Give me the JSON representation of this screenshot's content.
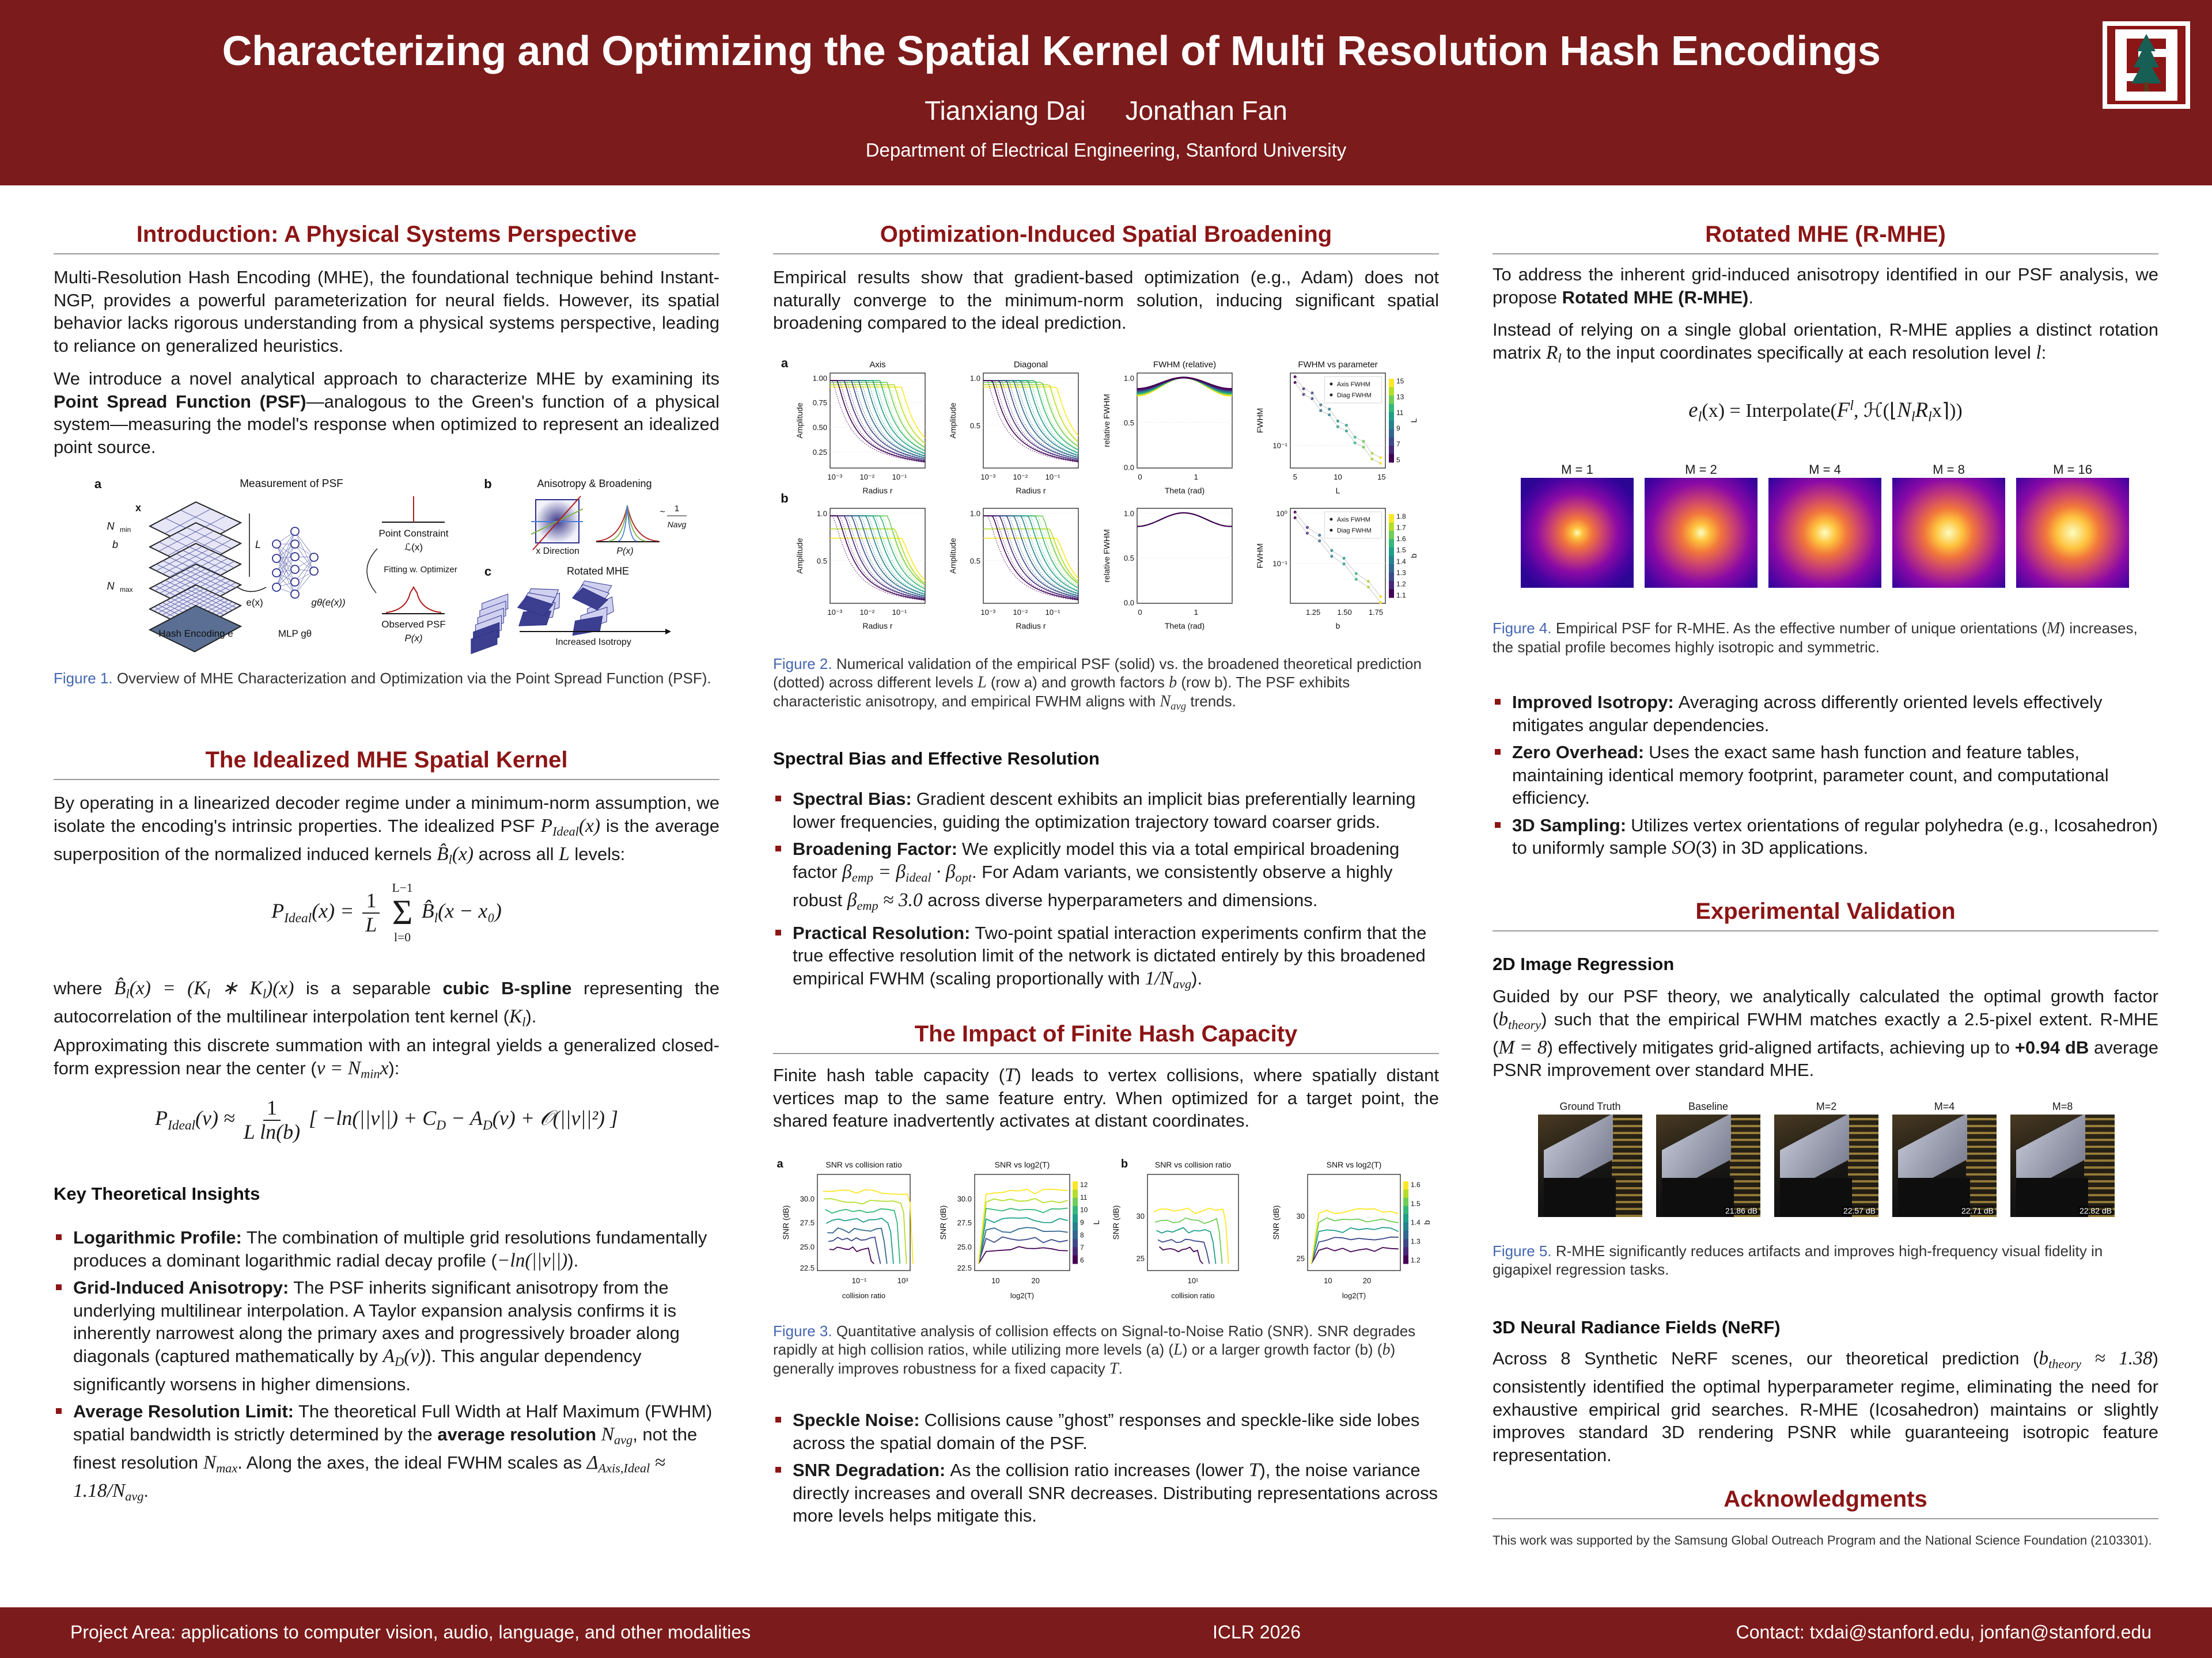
{
  "header": {
    "title": "Characterizing and Optimizing the Spatial Kernel of Multi Resolution Hash Encodings",
    "authors": [
      "Tianxiang Dai",
      "Jonathan Fan"
    ],
    "affiliation": "Department of Electrical Engineering, Stanford University",
    "logo": "Stanford tree logo",
    "brand_color": "#7c1b1b"
  },
  "footer": {
    "left": "Project Area: applications to computer vision, audio, language, and other modalities",
    "center": "ICLR 2026",
    "right": "Contact: txdai@stanford.edu, jonfan@stanford.edu"
  },
  "left": {
    "intro_title": "Introduction: A Physical Systems Perspective",
    "intro_p1": [
      {
        "t": "Multi-Resolution Hash Encoding (MHE), the foundational technique behind Instant-NGP, provides a powerful parameterization for neural fields. However, its spatial behavior lacks rigorous understanding from a physical systems perspective, leading to reliance on generalized heuristics."
      }
    ],
    "intro_p2": [
      {
        "t": "We introduce a novel analytical approach to characterize MHE by examining its "
      },
      {
        "t": "Point Spread Function (PSF)",
        "s": "b"
      },
      {
        "t": "—analogous to the Green's function of a physical system—measuring the model's response when optimized to represent an idealized point source."
      }
    ],
    "fig1_caption": [
      {
        "t": "Figure 1.",
        "s": "c"
      },
      {
        "t": " Overview of MHE Characterization and Optimization via the Point Spread Function (PSF)."
      }
    ],
    "ideal_title": "The Idealized MHE Spatial Kernel",
    "ideal_p1": [
      {
        "t": "By operating in a linearized decoder regime under a minimum-norm assumption, we isolate the encoding's intrinsic properties. The idealized PSF "
      },
      {
        "t": "P",
        "s": "m"
      },
      {
        "t": "Ideal",
        "s": "sub"
      },
      {
        "t": "(x)",
        "s": "m"
      },
      {
        "t": " is the average superposition of the normalized induced kernels "
      },
      {
        "t": "B̂",
        "s": "m"
      },
      {
        "t": "l",
        "s": "sub"
      },
      {
        "t": "(x)",
        "s": "m"
      },
      {
        "t": " across all "
      },
      {
        "t": "L",
        "s": "m"
      },
      {
        "t": " levels:"
      }
    ],
    "eq1": {
      "lhs": "P",
      "lhs_sub": "Ideal",
      "lhs_arg": "(x) =",
      "num": "1",
      "den": "L",
      "sum_top": "L−1",
      "sum": "Σ",
      "sum_bot": "l=0",
      "term": "B̂",
      "term_sub": "l",
      "term_arg": "(x − x₀)"
    },
    "ideal_p2": [
      {
        "t": "where "
      },
      {
        "t": "B̂",
        "s": "m"
      },
      {
        "t": "l",
        "s": "sub"
      },
      {
        "t": "(x) = (K",
        "s": "m"
      },
      {
        "t": "l",
        "s": "sub"
      },
      {
        "t": " ∗ K",
        "s": "m"
      },
      {
        "t": "l",
        "s": "sub"
      },
      {
        "t": ")(x)",
        "s": "m"
      },
      {
        "t": " is a separable "
      },
      {
        "t": "cubic B-spline",
        "s": "b"
      },
      {
        "t": " representing the autocorrelation of the multilinear interpolation tent kernel ("
      },
      {
        "t": "K",
        "s": "m"
      },
      {
        "t": "l",
        "s": "sub"
      },
      {
        "t": ")."
      }
    ],
    "ideal_p3": [
      {
        "t": "Approximating this discrete summation with an integral yields a generalized closed-form expression near the center ("
      },
      {
        "t": "v = N",
        "s": "m"
      },
      {
        "t": "min",
        "s": "sub"
      },
      {
        "t": "x",
        "s": "m"
      },
      {
        "t": "):"
      }
    ],
    "eq2": {
      "lhs": "P",
      "lhs_sub": "Ideal",
      "lhs_arg": "(v) ≈",
      "num": "1",
      "den": "L ln(b)",
      "body": "[ −ln(||v||) + C",
      "c_sub": "D",
      "mid": " − A",
      "a_sub": "D",
      "tail": "(v) + 𝒪(||v||²) ]"
    },
    "insights_title": "Key Theoretical Insights",
    "insights": [
      {
        "term": "Logarithmic Profile:",
        "segs": [
          {
            "t": "The combination of multiple grid resolutions fundamentally produces a dominant logarithmic radial decay profile ("
          },
          {
            "t": "−ln(||v||)",
            "s": "m"
          },
          {
            "t": ")."
          }
        ]
      },
      {
        "term": "Grid-Induced Anisotropy:",
        "segs": [
          {
            "t": "The PSF inherits significant anisotropy from the underlying multilinear interpolation. A Taylor expansion analysis confirms it is inherently narrowest along the primary axes and progressively broader along diagonals (captured mathematically by "
          },
          {
            "t": "A",
            "s": "m"
          },
          {
            "t": "D",
            "s": "sub"
          },
          {
            "t": "(v)",
            "s": "m"
          },
          {
            "t": "). This angular dependency significantly worsens in higher dimensions."
          }
        ]
      },
      {
        "term": "Average Resolution Limit:",
        "segs": [
          {
            "t": "The theoretical Full Width at Half Maximum (FWHM) spatial bandwidth is strictly determined by the "
          },
          {
            "t": "average resolution",
            "s": "b"
          },
          {
            "t": " "
          },
          {
            "t": "N",
            "s": "m"
          },
          {
            "t": "avg",
            "s": "sub"
          },
          {
            "t": ", not the finest resolution "
          },
          {
            "t": "N",
            "s": "m"
          },
          {
            "t": "max",
            "s": "sub"
          },
          {
            "t": ". Along the axes, the ideal FWHM scales as "
          },
          {
            "t": "Δ",
            "s": "m"
          },
          {
            "t": "Axis,Ideal",
            "s": "sub"
          },
          {
            "t": " ≈ 1.18/N",
            "s": "m"
          },
          {
            "t": "avg",
            "s": "sub"
          },
          {
            "t": "."
          }
        ]
      }
    ]
  },
  "mid": {
    "opt_title": "Optimization-Induced Spatial Broadening",
    "opt_p1": [
      {
        "t": "Empirical results show that gradient-based optimization (e.g., Adam) does not naturally converge to the minimum-norm solution, inducing significant spatial broadening compared to the ideal prediction."
      }
    ],
    "fig2_caption": [
      {
        "t": "Figure 2.",
        "s": "c"
      },
      {
        "t": " Numerical validation of the empirical PSF (solid) vs. the broadened theoretical prediction (dotted) across different levels "
      },
      {
        "t": "L",
        "s": "m"
      },
      {
        "t": " (row a) and growth factors "
      },
      {
        "t": "b",
        "s": "m"
      },
      {
        "t": " (row b). The PSF exhibits characteristic anisotropy, and empirical FWHM aligns with "
      },
      {
        "t": "N",
        "s": "m"
      },
      {
        "t": "avg",
        "s": "sub"
      },
      {
        "t": " trends."
      }
    ],
    "spectral_title": "Spectral Bias and Effective Resolution",
    "spectral": [
      {
        "term": "Spectral Bias:",
        "segs": [
          {
            "t": "Gradient descent exhibits an implicit bias preferentially learning lower frequencies, guiding the optimization trajectory toward coarser grids."
          }
        ]
      },
      {
        "term": "Broadening Factor:",
        "segs": [
          {
            "t": "We explicitly model this via a total empirical broadening factor "
          },
          {
            "t": "β",
            "s": "m"
          },
          {
            "t": "emp",
            "s": "sub"
          },
          {
            "t": " = β",
            "s": "m"
          },
          {
            "t": "ideal",
            "s": "sub"
          },
          {
            "t": " · β",
            "s": "m"
          },
          {
            "t": "opt",
            "s": "sub"
          },
          {
            "t": ". For Adam variants, we consistently observe a highly robust "
          },
          {
            "t": "β",
            "s": "m"
          },
          {
            "t": "emp",
            "s": "sub"
          },
          {
            "t": " ≈ 3.0",
            "s": "m"
          },
          {
            "t": " across diverse hyperparameters and dimensions."
          }
        ]
      },
      {
        "term": "Practical Resolution:",
        "segs": [
          {
            "t": "Two-point spatial interaction experiments confirm that the true effective resolution limit of the network is dictated entirely by this broadened empirical FWHM (scaling proportionally with "
          },
          {
            "t": "1/N",
            "s": "m"
          },
          {
            "t": "avg",
            "s": "sub"
          },
          {
            "t": ")."
          }
        ]
      }
    ],
    "hash_title": "The Impact of Finite Hash Capacity",
    "hash_p1": [
      {
        "t": "Finite hash table capacity ("
      },
      {
        "t": "T",
        "s": "m"
      },
      {
        "t": ") leads to vertex collisions, where spatially distant vertices map to the same feature entry. When optimized for a target point, the shared feature inadvertently activates at distant coordinates."
      }
    ],
    "fig3_caption": [
      {
        "t": "Figure 3.",
        "s": "c"
      },
      {
        "t": " Quantitative analysis of collision effects on Signal-to-Noise Ratio (SNR). SNR degrades rapidly at high collision ratios, while utilizing more levels (a) ("
      },
      {
        "t": "L",
        "s": "m"
      },
      {
        "t": ") or a larger growth factor (b) ("
      },
      {
        "t": "b",
        "s": "m"
      },
      {
        "t": ") generally improves robustness for a fixed capacity "
      },
      {
        "t": "T",
        "s": "m"
      },
      {
        "t": "."
      }
    ],
    "hash_bullets": [
      {
        "term": "Speckle Noise:",
        "segs": [
          {
            "t": "Collisions cause ”ghost” responses and speckle-like side lobes across the spatial domain of the PSF."
          }
        ]
      },
      {
        "term": "SNR Degradation:",
        "segs": [
          {
            "t": "As the collision ratio increases (lower "
          },
          {
            "t": "T",
            "s": "m"
          },
          {
            "t": "), the noise variance directly increases and overall SNR decreases. Distributing representations across more levels helps mitigate this."
          }
        ]
      }
    ]
  },
  "right": {
    "rmhe_title": "Rotated MHE (R-MHE)",
    "rmhe_p1": [
      {
        "t": "To address the inherent grid-induced anisotropy identified in our PSF analysis, we propose "
      },
      {
        "t": "Rotated MHE (R-MHE)",
        "s": "b"
      },
      {
        "t": "."
      }
    ],
    "rmhe_p2": [
      {
        "t": "Instead of relying on a single global orientation, R-MHE applies a distinct rotation matrix "
      },
      {
        "t": "R",
        "s": "m"
      },
      {
        "t": "l",
        "s": "sub"
      },
      {
        "t": " to the input coordinates specifically at each resolution level "
      },
      {
        "t": "l",
        "s": "m"
      },
      {
        "t": ":"
      }
    ],
    "eq3": [
      {
        "t": "e",
        "s": "m"
      },
      {
        "t": "l",
        "s": "sub"
      },
      {
        "t": "(x) = "
      },
      {
        "t": "Interpolate("
      },
      {
        "t": "F",
        "s": "m"
      },
      {
        "t": "l",
        "s": "sup"
      },
      {
        "t": ", ℋ(⌊"
      },
      {
        "t": "N",
        "s": "m"
      },
      {
        "t": "l",
        "s": "sub"
      },
      {
        "t": "R",
        "s": "m"
      },
      {
        "t": "l",
        "s": "sub"
      },
      {
        "t": "x⌉))"
      }
    ],
    "fig4_labels": [
      "M = 1",
      "M = 2",
      "M = 4",
      "M = 8",
      "M = 16"
    ],
    "fig4_caption": [
      {
        "t": "Figure 4.",
        "s": "c"
      },
      {
        "t": " Empirical PSF for R-MHE. As the effective number of unique orientations ("
      },
      {
        "t": "M",
        "s": "m"
      },
      {
        "t": ") increases, the spatial profile becomes highly isotropic and symmetric."
      }
    ],
    "rmhe_bullets": [
      {
        "term": "Improved Isotropy:",
        "segs": [
          {
            "t": "Averaging across differently oriented levels effectively mitigates angular dependencies."
          }
        ]
      },
      {
        "term": "Zero Overhead:",
        "segs": [
          {
            "t": "Uses the exact same hash function and feature tables, maintaining identical memory footprint, parameter count, and computational efficiency."
          }
        ]
      },
      {
        "term": "3D Sampling:",
        "segs": [
          {
            "t": "Utilizes vertex orientations of regular polyhedra (e.g., Icosahedron) to uniformly sample "
          },
          {
            "t": "SO",
            "s": "m"
          },
          {
            "t": "(3) in 3D applications."
          }
        ]
      }
    ],
    "exp_title": "Experimental Validation",
    "img_title": "2D Image Regression",
    "img_p1": [
      {
        "t": "Guided by our PSF theory, we analytically calculated the optimal growth factor ("
      },
      {
        "t": "b",
        "s": "m"
      },
      {
        "t": "theory",
        "s": "sub"
      },
      {
        "t": ") such that the empirical FWHM matches exactly a  2.5-pixel extent. R-MHE ("
      },
      {
        "t": "M = 8",
        "s": "m"
      },
      {
        "t": ") effectively mitigates grid-aligned artifacts, achieving up to "
      },
      {
        "t": "+0.94 dB",
        "s": "b"
      },
      {
        "t": " average PSNR improvement over standard MHE."
      }
    ],
    "fig5_labels": [
      "Ground Truth",
      "Baseline",
      "M=2",
      "M=4",
      "M=8"
    ],
    "fig5_psnr": [
      "",
      "21.86 dB",
      "22.57 dB",
      "22.71 dB",
      "22.82 dB"
    ],
    "fig5_caption": [
      {
        "t": "Figure 5.",
        "s": "c"
      },
      {
        "t": " R-MHE significantly reduces artifacts and improves high-frequency visual fidelity in gigapixel regression tasks."
      }
    ],
    "nerf_title": "3D Neural Radiance Fields (NeRF)",
    "nerf_p1": [
      {
        "t": "Across 8 Synthetic NeRF scenes, our theoretical prediction ("
      },
      {
        "t": "b",
        "s": "m"
      },
      {
        "t": "theory",
        "s": "sub"
      },
      {
        "t": " ≈ 1.38",
        "s": "m"
      },
      {
        "t": ") consistently identified the optimal hyperparameter regime, eliminating the need for exhaustive empirical grid searches. R-MHE (Icosahedron) maintains or slightly improves standard 3D rendering PSNR while guaranteeing isotropic feature representation."
      }
    ],
    "ack_title": "Acknowledgments",
    "ack_text": "This work was supported by the Samsung Global Outreach Program and the National Science Foundation (2103301)."
  },
  "fig1": {
    "a": "a",
    "b": "b",
    "c": "c",
    "title_a": "Measurement of PSF",
    "x": "x",
    "nmin": "N",
    "nmin_sub": "min",
    "b_arrow": "b",
    "nmax": "N",
    "nmax_sub": "max",
    "L": "L",
    "ex": "e(x)",
    "g": "gθ(e(x))",
    "hash_label": "Hash Encoding e",
    "mlp_label": "MLP gθ",
    "point_constraint": "Point Constraint",
    "loss": "ℒ(x)",
    "fitting": "Fitting w. Optimizer",
    "observed": "Observed PSF",
    "px": "P(x)",
    "title_b": "Anisotropy & Broadening",
    "x_direction": "x Direction",
    "px_b": "P(x)",
    "scaling_num": "1",
    "scaling_den": "Navg",
    "tilde": "~",
    "title_c": "Rotated MHE",
    "increased": "Increased Isotropy"
  },
  "fig2": {
    "rows": [
      "a",
      "b"
    ],
    "titles": [
      "Axis",
      "Diagonal",
      "FWHM (relative)",
      "FWHM vs parameter"
    ],
    "ylabels": [
      "Amplitude",
      "Amplitude",
      "relative FWHM",
      "FWHM"
    ],
    "xlabels": [
      [
        "Radius r",
        "Radius r",
        "Theta (rad)",
        "L"
      ],
      [
        "Radius r",
        "Radius r",
        "Theta (rad)",
        "b"
      ]
    ],
    "yticks": [
      [
        [
          "1.00",
          "0.75",
          "0.50",
          "0.25"
        ],
        [
          "1.0",
          "0.5"
        ],
        [
          "1.0",
          "0.5",
          "0.0"
        ],
        [
          "10⁻¹"
        ]
      ],
      [
        [
          "1.0",
          "0.5"
        ],
        [
          "1.0",
          "0.5"
        ],
        [
          "1.0",
          "0.5",
          "0.0"
        ],
        [
          "10⁰",
          "10⁻¹"
        ]
      ]
    ],
    "xticks": [
      [
        [
          "10⁻³",
          "10⁻²",
          "10⁻¹"
        ],
        [
          "10⁻³",
          "10⁻²",
          "10⁻¹"
        ],
        [
          "0",
          "1"
        ],
        [
          "5",
          "10",
          "15"
        ]
      ],
      [
        [
          "10⁻³",
          "10⁻²",
          "10⁻¹"
        ],
        [
          "10⁻³",
          "10⁻²",
          "10⁻¹"
        ],
        [
          "0",
          "1"
        ],
        [
          "1.25",
          "1.50",
          "1.75"
        ]
      ]
    ],
    "legend": [
      "Axis FWHM",
      "Diag FWHM"
    ],
    "colorbars": [
      {
        "label": "L",
        "ticks": [
          "15",
          "13",
          "11",
          "9",
          "7",
          "5"
        ]
      },
      {
        "label": "b",
        "ticks": [
          "1.8",
          "1.7",
          "1.6",
          "1.5",
          "1.4",
          "1.3",
          "1.2",
          "1.1"
        ]
      }
    ],
    "colormap": [
      "#440154",
      "#482878",
      "#3e4989",
      "#31688e",
      "#26828e",
      "#1f9e89",
      "#35b779",
      "#6ece58",
      "#b5de2b",
      "#fde725"
    ]
  },
  "fig3": {
    "rows": [
      "a",
      "b"
    ],
    "titles": [
      "SNR vs collision ratio",
      "SNR vs log2(T)",
      "SNR vs collision ratio",
      "SNR vs log2(T)"
    ],
    "ylabel": "SNR (dB)",
    "xlabels": [
      "collision ratio",
      "log2(T)",
      "collision ratio",
      "log2(T)"
    ],
    "yticks": [
      [
        "30.0",
        "27.5",
        "25.0",
        "22.5"
      ],
      [
        "30.0",
        "27.5",
        "25.0",
        "22.5"
      ],
      [
        "30",
        "25"
      ],
      [
        "30",
        "25"
      ]
    ],
    "xticks": [
      [
        "10⁻¹",
        "10³"
      ],
      [
        "10",
        "20"
      ],
      [
        "10¹"
      ],
      [
        "10",
        "20"
      ]
    ],
    "colorbars": [
      {
        "label": "L",
        "ticks": [
          "12",
          "11",
          "10",
          "9",
          "8",
          "7",
          "6"
        ]
      },
      {
        "label": "b",
        "ticks": [
          "1.6",
          "1.5",
          "1.4",
          "1.3",
          "1.2"
        ]
      }
    ]
  }
}
